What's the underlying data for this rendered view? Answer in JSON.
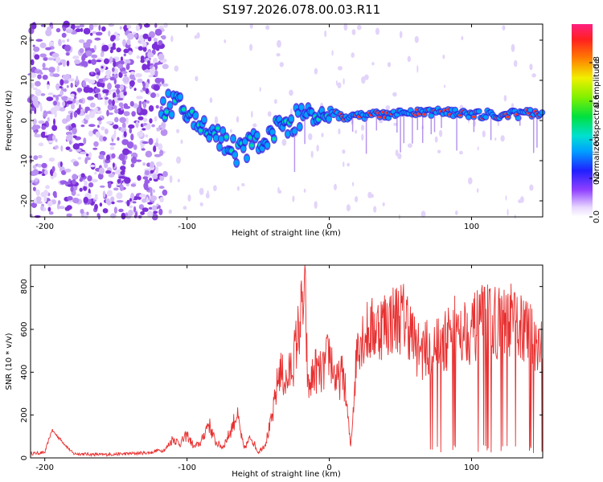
{
  "title": "S197.2026.078.00.03.R11",
  "colors": {
    "snr_line": "#e83030",
    "axis": "#000000",
    "blob_low": "#c8a8f0",
    "blob_high": "#6a1fd0"
  },
  "chart_data": [
    {
      "type": "heatmap",
      "xlabel": "Height of straight line (km)",
      "ylabel": "Frequency (Hz)",
      "xlim": [
        -210,
        150
      ],
      "ylim": [
        -24,
        24
      ],
      "xticks": [
        -200,
        -100,
        0,
        100
      ],
      "yticks": [
        -20,
        -10,
        0,
        10,
        20
      ],
      "colorbar": {
        "label": "Normalized spectral amplitude",
        "range": [
          0,
          1
        ],
        "ticks": [
          0.0,
          0.2,
          0.4,
          0.6,
          0.8
        ],
        "tick_labels": [
          "0.0",
          "0.2",
          "0.4",
          "0.6",
          "0.8"
        ]
      },
      "track": {
        "x": [
          -115,
          -105,
          -95,
          -85,
          -75,
          -65,
          -55,
          -45,
          -35,
          -25,
          -15,
          -5,
          0,
          10,
          30,
          50,
          70,
          90,
          110,
          130,
          150
        ],
        "y": [
          5,
          3,
          0,
          -2,
          -5,
          -8,
          -6,
          -4,
          -2,
          0,
          1,
          1.5,
          2,
          1,
          1.2,
          1.5,
          2,
          2,
          1.5,
          1.5,
          2
        ]
      }
    },
    {
      "type": "line",
      "xlabel": "Height of straight line (km)",
      "ylabel": "SNR (10 * v/v)",
      "xlim": [
        -210,
        150
      ],
      "ylim": [
        0,
        900
      ],
      "xticks": [
        -200,
        -100,
        0,
        100
      ],
      "yticks": [
        0,
        200,
        400,
        600,
        800
      ],
      "series": [
        {
          "name": "SNR",
          "x": [
            -210,
            -200,
            -195,
            -180,
            -160,
            -140,
            -125,
            -115,
            -110,
            -105,
            -100,
            -95,
            -90,
            -85,
            -80,
            -75,
            -70,
            -65,
            -60,
            -55,
            -50,
            -45,
            -40,
            -35,
            -30,
            -25,
            -20,
            -17,
            -15,
            -10,
            -5,
            0,
            5,
            10,
            15,
            20,
            30,
            40,
            50,
            55,
            60,
            65,
            70,
            80,
            90,
            100,
            110,
            120,
            130,
            140,
            148
          ],
          "y": [
            20,
            25,
            130,
            20,
            15,
            20,
            25,
            50,
            110,
            80,
            130,
            60,
            90,
            200,
            90,
            60,
            140,
            250,
            50,
            120,
            30,
            80,
            230,
            500,
            420,
            560,
            800,
            900,
            380,
            500,
            470,
            600,
            420,
            480,
            60,
            680,
            720,
            770,
            800,
            780,
            640,
            600,
            620,
            640,
            750,
            720,
            790,
            760,
            780,
            700,
            650
          ]
        }
      ]
    }
  ]
}
